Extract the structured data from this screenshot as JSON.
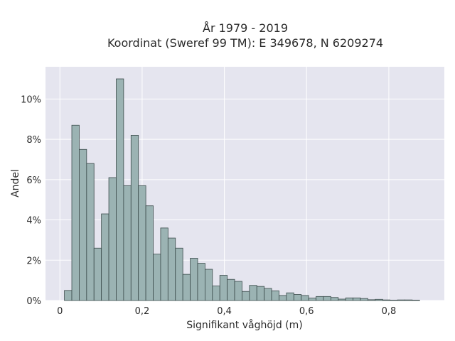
{
  "chart_data": {
    "type": "bar",
    "title_line1": "År 1979 - 2019",
    "title_line2": "Koordinat (Sweref 99 TM): E 349678, N 6209274",
    "xlabel": "Signifikant våghöjd (m)",
    "ylabel": "Andel",
    "x_ticks": [
      {
        "value": 0,
        "label": "0"
      },
      {
        "value": 0.2,
        "label": "0,2"
      },
      {
        "value": 0.4,
        "label": "0,4"
      },
      {
        "value": 0.6,
        "label": "0,6"
      },
      {
        "value": 0.8,
        "label": "0,8"
      }
    ],
    "y_ticks": [
      {
        "value": 0,
        "label": "0%"
      },
      {
        "value": 2,
        "label": "2%"
      },
      {
        "value": 4,
        "label": "4%"
      },
      {
        "value": 6,
        "label": "6%"
      },
      {
        "value": 8,
        "label": "8%"
      },
      {
        "value": 10,
        "label": "10%"
      }
    ],
    "xlim": [
      -0.035,
      0.935
    ],
    "ylim": [
      0,
      11.6
    ],
    "bin_width": 0.018,
    "bin_start": 0.011,
    "values": [
      0.5,
      8.7,
      7.5,
      6.8,
      2.6,
      4.3,
      6.1,
      11.0,
      5.7,
      8.2,
      5.7,
      4.7,
      2.3,
      3.6,
      3.1,
      2.6,
      1.3,
      2.1,
      1.85,
      1.55,
      0.72,
      1.25,
      1.05,
      0.95,
      0.45,
      0.75,
      0.7,
      0.6,
      0.48,
      0.25,
      0.38,
      0.3,
      0.25,
      0.12,
      0.2,
      0.2,
      0.15,
      0.07,
      0.13,
      0.13,
      0.1,
      0.04,
      0.06,
      0.03,
      0.02,
      0.03,
      0.03,
      0.02
    ],
    "grid": true,
    "legend": "none",
    "colors": {
      "background": "#e5e5ef",
      "bar_fill": "#9bb3b3",
      "bar_stroke": "#3b4b4b",
      "grid": "#ffffff"
    }
  }
}
